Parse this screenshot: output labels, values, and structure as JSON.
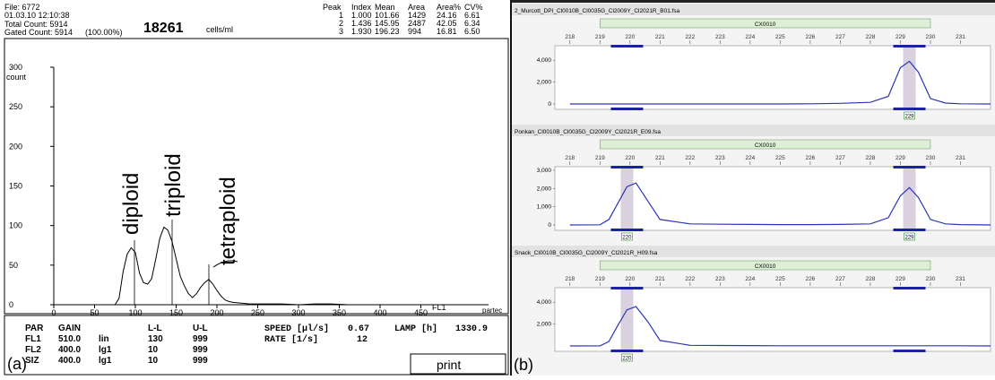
{
  "panel_a": {
    "file": "File: 6772",
    "datetime": "01.03.10 12:10:38",
    "total": "Total Count: 5914",
    "gated": "Gated Count: 5914",
    "gated_pct": "(100.00%)",
    "big_count": "18261",
    "unit": "cells/ml",
    "peak_header": [
      "Peak",
      "Index",
      "Mean",
      "Area",
      "Area%",
      "CV%"
    ],
    "peaks": [
      [
        "1",
        "1.000",
        "101.66",
        "1429",
        "24.16",
        "6.61"
      ],
      [
        "2",
        "1.436",
        "145.95",
        "2487",
        "42.05",
        "6.34"
      ],
      [
        "3",
        "1.930",
        "196.23",
        "994",
        "16.81",
        "6.50"
      ]
    ],
    "settings_header": [
      "PAR",
      "GAIN",
      "",
      "L-L",
      "U-L"
    ],
    "settings": [
      [
        "FL1",
        "510.0",
        "lin",
        "130",
        "999"
      ],
      [
        "FL2",
        "400.0",
        "lg1",
        "10",
        "999"
      ],
      [
        "SIZ",
        "400.0",
        "lg1",
        "10",
        "999"
      ]
    ],
    "speed_label": "SPEED [µl/s]",
    "speed_value": "0.67",
    "rate_label": "RATE  [1/s]",
    "rate_value": "12",
    "lamp_label": "LAMP [h]",
    "lamp_value": "1330.9",
    "print_label": "print",
    "panel_label": "(a)",
    "brand": "partec",
    "annotations": [
      "diploid",
      "triploid",
      "tetraploid"
    ],
    "chart_data": {
      "type": "line",
      "ylabel": "count",
      "xlabel": "FL1",
      "xlim": [
        0,
        500
      ],
      "ylim": [
        0,
        300
      ],
      "x_ticks": [
        0,
        50,
        100,
        150,
        200,
        250,
        300,
        350,
        400,
        450
      ],
      "y_ticks": [
        0,
        50,
        100,
        150,
        200,
        250,
        300
      ],
      "x": [
        0,
        75,
        80,
        85,
        90,
        95,
        100,
        105,
        110,
        115,
        120,
        125,
        130,
        135,
        140,
        145,
        150,
        155,
        160,
        165,
        170,
        175,
        180,
        185,
        190,
        195,
        200,
        205,
        210,
        215,
        220,
        230,
        240,
        260,
        280,
        300,
        320,
        340,
        360,
        380,
        400,
        420,
        440,
        460,
        480,
        500
      ],
      "y": [
        0,
        0,
        8,
        42,
        64,
        72,
        66,
        40,
        28,
        26,
        33,
        58,
        84,
        98,
        94,
        80,
        58,
        36,
        24,
        14,
        9,
        14,
        22,
        28,
        32,
        26,
        18,
        11,
        6,
        4,
        3,
        2,
        1,
        1,
        1,
        0,
        1,
        1,
        0,
        0,
        0,
        0,
        0,
        0,
        0,
        0
      ]
    }
  },
  "panel_b": {
    "panel_label": "(b)",
    "x_ticks": [
      "218",
      "219",
      "220",
      "221",
      "222",
      "223",
      "224",
      "225",
      "226",
      "227",
      "228",
      "229",
      "230",
      "231"
    ],
    "subpanels": [
      {
        "title": "2_Murcott_DPI_Cl0010B_Cl0035G_Cl2009Y_Cl2021R_B01.fsa",
        "bin_label": "CX0010",
        "y_ticks": [
          "4,000",
          "2,000",
          "0"
        ],
        "ymax": 5000,
        "chart_data": {
          "type": "line",
          "x": [
            218,
            219,
            220,
            221,
            222,
            223,
            224,
            225,
            226,
            227,
            228,
            228.6,
            229,
            229.3,
            229.6,
            230,
            230.5,
            231,
            232
          ],
          "y": [
            0,
            0,
            0,
            0,
            0,
            0,
            0,
            0,
            20,
            60,
            150,
            700,
            3300,
            3900,
            2900,
            500,
            80,
            20,
            0
          ]
        },
        "peak_labels": [
          "229"
        ]
      },
      {
        "title": "Ponkan_Cl0010B_Cl0035G_Cl2009Y_Cl2021R_E09.fsa",
        "bin_label": "CX0010",
        "y_ticks": [
          "3,000",
          "2,000",
          "1,000",
          "0"
        ],
        "ymax": 3000,
        "chart_data": {
          "type": "line",
          "x": [
            218,
            219,
            219.3,
            219.6,
            219.9,
            220.2,
            220.6,
            221,
            222,
            223,
            224,
            225,
            226,
            227,
            228,
            228.6,
            229,
            229.3,
            229.6,
            230,
            230.5,
            231,
            232
          ],
          "y": [
            0,
            10,
            300,
            1200,
            2100,
            2300,
            1300,
            300,
            60,
            40,
            30,
            20,
            20,
            30,
            60,
            400,
            1600,
            2050,
            1500,
            300,
            60,
            20,
            0
          ]
        },
        "peak_labels": [
          "220",
          "229"
        ]
      },
      {
        "title": "Snack_Cl0010B_Cl0035G_Cl2009Y_Cl2021R_H09.fsa",
        "bin_label": "CX0010",
        "y_ticks": [
          "4,000",
          "2,000"
        ],
        "ymax": 5000,
        "chart_data": {
          "type": "line",
          "x": [
            218,
            219,
            219.3,
            219.6,
            219.9,
            220.2,
            220.6,
            221,
            222,
            223,
            224,
            225,
            226,
            227,
            228,
            229,
            230,
            231,
            232
          ],
          "y": [
            0,
            10,
            400,
            1900,
            3300,
            3600,
            2200,
            500,
            60,
            40,
            30,
            20,
            20,
            20,
            20,
            20,
            20,
            20,
            0
          ]
        },
        "peak_labels": [
          "220"
        ]
      }
    ]
  }
}
